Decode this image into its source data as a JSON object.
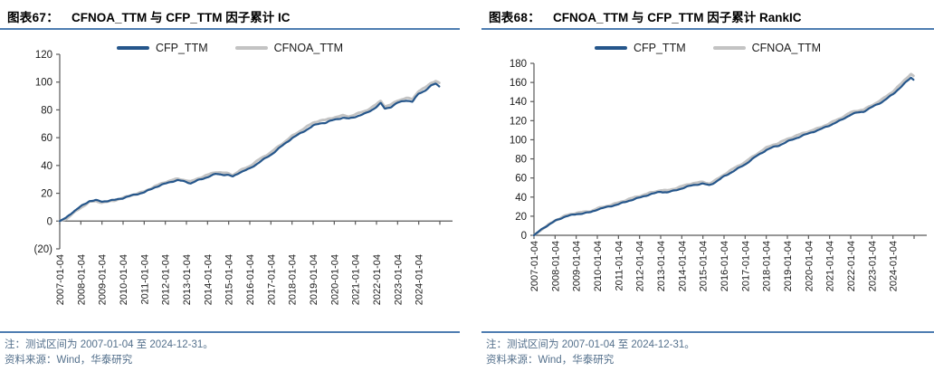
{
  "page": {
    "background": "#ffffff",
    "accent_rule_color": "#4E7DB1"
  },
  "charts": [
    {
      "figure_label": "图表67：",
      "title": "CFNOA_TTM 与 CFP_TTM 因子累计 IC",
      "note": "注：测试区间为 2007-01-04 至 2024-12-31。",
      "source": "资料来源：Wind，华泰研究",
      "chart_data": {
        "type": "line",
        "title": "CFNOA_TTM 与 CFP_TTM 因子累计 IC",
        "xlabel": "",
        "ylabel": "",
        "ylim": [
          -20,
          120
        ],
        "ytick_step": 20,
        "ytick_labels": [
          "120",
          "100",
          "80",
          "60",
          "40",
          "20",
          "0",
          "(20)"
        ],
        "x_range_years": [
          2007,
          2025.6
        ],
        "xtick_labels": [
          "2007-01-04",
          "2008-01-04",
          "2009-01-04",
          "2010-01-04",
          "2011-01-04",
          "2012-01-04",
          "2013-01-04",
          "2014-01-04",
          "2015-01-04",
          "2016-01-04",
          "2017-01-04",
          "2018-01-04",
          "2019-01-04",
          "2020-01-04",
          "2021-01-04",
          "2022-01-04",
          "2023-01-04",
          "2024-01-04"
        ],
        "grid": false,
        "legend_position": "top-center",
        "axis_color": "#595959",
        "series": [
          {
            "name": "CFP_TTM",
            "color": "#25568B",
            "anchors": [
              [
                2007.0,
                0
              ],
              [
                2007.3,
                2
              ],
              [
                2007.6,
                6
              ],
              [
                2008.0,
                10.5
              ],
              [
                2008.4,
                14.5
              ],
              [
                2008.7,
                15
              ],
              [
                2009.0,
                14
              ],
              [
                2009.3,
                14.5
              ],
              [
                2009.6,
                15
              ],
              [
                2010.0,
                16.5
              ],
              [
                2010.5,
                19
              ],
              [
                2011.0,
                21
              ],
              [
                2011.5,
                24.5
              ],
              [
                2012.0,
                27
              ],
              [
                2012.3,
                28.5
              ],
              [
                2012.6,
                29.5
              ],
              [
                2013.0,
                28.5
              ],
              [
                2013.2,
                27.5
              ],
              [
                2013.5,
                29.5
              ],
              [
                2014.0,
                32
              ],
              [
                2014.4,
                34
              ],
              [
                2015.0,
                33
              ],
              [
                2015.2,
                32
              ],
              [
                2015.5,
                35
              ],
              [
                2016.0,
                38
              ],
              [
                2016.5,
                43
              ],
              [
                2017.0,
                47.5
              ],
              [
                2017.5,
                53.5
              ],
              [
                2018.0,
                59.5
              ],
              [
                2018.5,
                64
              ],
              [
                2019.0,
                68.5
              ],
              [
                2019.3,
                70
              ],
              [
                2019.6,
                70.5
              ],
              [
                2020.0,
                72.5
              ],
              [
                2020.4,
                74
              ],
              [
                2020.7,
                73.5
              ],
              [
                2021.0,
                75
              ],
              [
                2021.5,
                77.5
              ],
              [
                2021.8,
                80
              ],
              [
                2022.0,
                82
              ],
              [
                2022.2,
                84.5
              ],
              [
                2022.4,
                80.5
              ],
              [
                2022.7,
                82
              ],
              [
                2023.0,
                85
              ],
              [
                2023.4,
                87
              ],
              [
                2023.7,
                86
              ],
              [
                2024.0,
                92
              ],
              [
                2024.3,
                94
              ],
              [
                2024.6,
                97.5
              ],
              [
                2024.8,
                99
              ],
              [
                2024.97,
                97
              ]
            ]
          },
          {
            "name": "CFNOA_TTM",
            "color": "#C3C3C3",
            "anchors": [
              [
                2007.0,
                0
              ],
              [
                2007.3,
                1.5
              ],
              [
                2007.6,
                5.5
              ],
              [
                2008.0,
                10
              ],
              [
                2008.4,
                14
              ],
              [
                2008.7,
                14.5
              ],
              [
                2009.0,
                13.5
              ],
              [
                2009.3,
                14
              ],
              [
                2009.6,
                15
              ],
              [
                2010.0,
                17
              ],
              [
                2010.5,
                19.5
              ],
              [
                2011.0,
                21.5
              ],
              [
                2011.5,
                25
              ],
              [
                2012.0,
                28
              ],
              [
                2012.3,
                29.5
              ],
              [
                2012.6,
                30.5
              ],
              [
                2013.0,
                29.5
              ],
              [
                2013.2,
                28.5
              ],
              [
                2013.5,
                30.5
              ],
              [
                2014.0,
                33
              ],
              [
                2014.4,
                35
              ],
              [
                2015.0,
                34
              ],
              [
                2015.2,
                33
              ],
              [
                2015.5,
                36
              ],
              [
                2016.0,
                39.5
              ],
              [
                2016.5,
                44.5
              ],
              [
                2017.0,
                49
              ],
              [
                2017.5,
                55
              ],
              [
                2018.0,
                61
              ],
              [
                2018.5,
                66
              ],
              [
                2019.0,
                70.5
              ],
              [
                2019.3,
                72
              ],
              [
                2019.6,
                72.5
              ],
              [
                2020.0,
                74.5
              ],
              [
                2020.4,
                76
              ],
              [
                2020.7,
                75.5
              ],
              [
                2021.0,
                77
              ],
              [
                2021.5,
                79.5
              ],
              [
                2021.8,
                82
              ],
              [
                2022.0,
                84
              ],
              [
                2022.2,
                86.5
              ],
              [
                2022.4,
                82.5
              ],
              [
                2022.7,
                84
              ],
              [
                2023.0,
                87
              ],
              [
                2023.4,
                89
              ],
              [
                2023.7,
                88
              ],
              [
                2024.0,
                94
              ],
              [
                2024.3,
                96
              ],
              [
                2024.6,
                99.5
              ],
              [
                2024.8,
                101
              ],
              [
                2024.97,
                99.5
              ]
            ]
          }
        ]
      }
    },
    {
      "figure_label": "图表68：",
      "title": "CFNOA_TTM 与 CFP_TTM 因子累计 RankIC",
      "note": "注：测试区间为 2007-01-04 至 2024-12-31。",
      "source": "资料来源：Wind，华泰研究",
      "chart_data": {
        "type": "line",
        "title": "CFNOA_TTM 与 CFP_TTM 因子累计 RankIC",
        "xlabel": "",
        "ylabel": "",
        "ylim": [
          0,
          180
        ],
        "ytick_step": 20,
        "ytick_labels": [
          "180",
          "160",
          "140",
          "120",
          "100",
          "80",
          "60",
          "40",
          "20",
          "0"
        ],
        "x_range_years": [
          2007,
          2025.6
        ],
        "xtick_labels": [
          "2007-01-04",
          "2008-01-04",
          "2009-01-04",
          "2010-01-04",
          "2011-01-04",
          "2012-01-04",
          "2013-01-04",
          "2014-01-04",
          "2015-01-04",
          "2016-01-04",
          "2017-01-04",
          "2018-01-04",
          "2019-01-04",
          "2020-01-04",
          "2021-01-04",
          "2022-01-04",
          "2023-01-04",
          "2024-01-04"
        ],
        "grid": false,
        "legend_position": "top-center",
        "axis_color": "#595959",
        "series": [
          {
            "name": "CFP_TTM",
            "color": "#25568B",
            "anchors": [
              [
                2007.0,
                0
              ],
              [
                2007.5,
                8
              ],
              [
                2008.0,
                15
              ],
              [
                2008.5,
                20
              ],
              [
                2009.0,
                22
              ],
              [
                2009.4,
                23
              ],
              [
                2009.7,
                24
              ],
              [
                2010.0,
                27
              ],
              [
                2010.5,
                30
              ],
              [
                2011.0,
                33
              ],
              [
                2011.5,
                36.5
              ],
              [
                2012.0,
                39.5
              ],
              [
                2012.5,
                43
              ],
              [
                2013.0,
                46
              ],
              [
                2013.3,
                45.5
              ],
              [
                2013.6,
                47
              ],
              [
                2014.0,
                49.5
              ],
              [
                2014.5,
                52.5
              ],
              [
                2015.0,
                54
              ],
              [
                2015.3,
                52.5
              ],
              [
                2015.6,
                56
              ],
              [
                2016.0,
                62
              ],
              [
                2016.5,
                68
              ],
              [
                2017.0,
                74
              ],
              [
                2017.5,
                82
              ],
              [
                2018.0,
                89
              ],
              [
                2018.3,
                92
              ],
              [
                2018.6,
                94
              ],
              [
                2019.0,
                98
              ],
              [
                2019.5,
                102
              ],
              [
                2020.0,
                106
              ],
              [
                2020.5,
                110
              ],
              [
                2021.0,
                115
              ],
              [
                2021.5,
                120
              ],
              [
                2022.0,
                126
              ],
              [
                2022.3,
                128
              ],
              [
                2022.6,
                129
              ],
              [
                2023.0,
                134
              ],
              [
                2023.5,
                140
              ],
              [
                2024.0,
                148
              ],
              [
                2024.4,
                156
              ],
              [
                2024.7,
                162
              ],
              [
                2024.85,
                165
              ],
              [
                2024.97,
                163
              ]
            ]
          },
          {
            "name": "CFNOA_TTM",
            "color": "#C3C3C3",
            "anchors": [
              [
                2007.0,
                0
              ],
              [
                2007.5,
                8.5
              ],
              [
                2008.0,
                16
              ],
              [
                2008.5,
                21
              ],
              [
                2009.0,
                23.5
              ],
              [
                2009.4,
                24.5
              ],
              [
                2009.7,
                25.5
              ],
              [
                2010.0,
                28.5
              ],
              [
                2010.5,
                31.5
              ],
              [
                2011.0,
                34.5
              ],
              [
                2011.5,
                38
              ],
              [
                2012.0,
                41
              ],
              [
                2012.5,
                44.5
              ],
              [
                2013.0,
                47.5
              ],
              [
                2013.3,
                47
              ],
              [
                2013.6,
                48.5
              ],
              [
                2014.0,
                51
              ],
              [
                2014.5,
                54
              ],
              [
                2015.0,
                55.5
              ],
              [
                2015.3,
                54
              ],
              [
                2015.6,
                57.5
              ],
              [
                2016.0,
                63.5
              ],
              [
                2016.5,
                70
              ],
              [
                2017.0,
                76
              ],
              [
                2017.5,
                84
              ],
              [
                2018.0,
                91.5
              ],
              [
                2018.3,
                94.5
              ],
              [
                2018.6,
                96.5
              ],
              [
                2019.0,
                100.5
              ],
              [
                2019.5,
                104.5
              ],
              [
                2020.0,
                108.5
              ],
              [
                2020.5,
                112.5
              ],
              [
                2021.0,
                117.5
              ],
              [
                2021.5,
                122.5
              ],
              [
                2022.0,
                128.5
              ],
              [
                2022.3,
                130.5
              ],
              [
                2022.6,
                131.5
              ],
              [
                2023.0,
                136.5
              ],
              [
                2023.5,
                143
              ],
              [
                2024.0,
                151
              ],
              [
                2024.4,
                159
              ],
              [
                2024.7,
                166
              ],
              [
                2024.85,
                169
              ],
              [
                2024.97,
                167
              ]
            ]
          }
        ]
      }
    }
  ]
}
